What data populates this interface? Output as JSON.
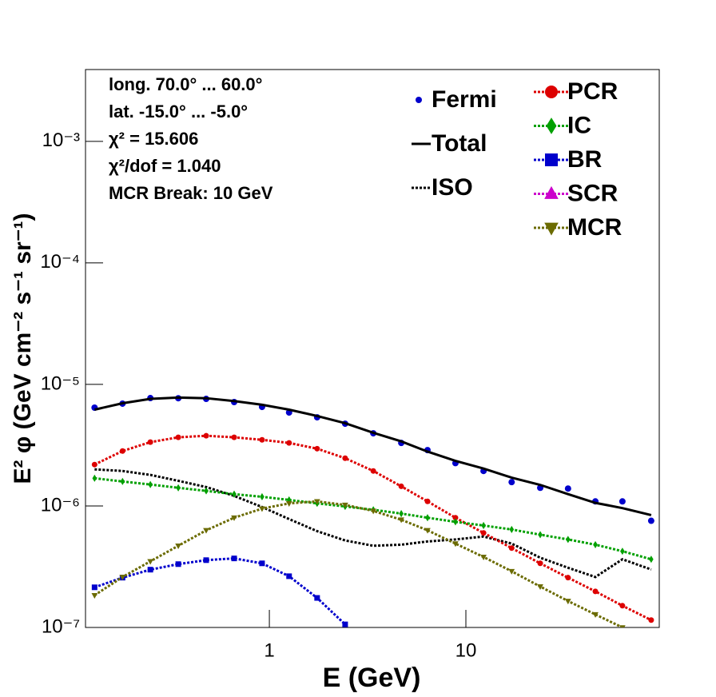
{
  "chart_data": {
    "type": "scatter",
    "log_x": true,
    "log_y": true,
    "x_label": "E (GeV)",
    "y_label": "E² φ (GeV cm⁻² s⁻¹ sr⁻¹)",
    "annotations": [
      "long. 70.0° ... 60.0°",
      "lat. -15.0° ... -5.0°",
      "χ² = 15.606",
      "χ²/dof = 1.040",
      "MCR Break: 10 GeV"
    ],
    "xlim": [
      0.116,
      96.4
    ],
    "ylim": [
      1e-07,
      0.0039
    ],
    "xticks": [
      1,
      10
    ],
    "yticks": [
      {
        "value": 1e-07,
        "label": "10⁻⁷"
      },
      {
        "value": 1e-06,
        "label": "10⁻⁶"
      },
      {
        "value": 1e-05,
        "label": "10⁻⁵"
      },
      {
        "value": 0.0001,
        "label": "10⁻⁴"
      },
      {
        "value": 0.001,
        "label": "10⁻³"
      }
    ],
    "x": [
      0.129,
      0.179,
      0.248,
      0.344,
      0.477,
      0.662,
      0.918,
      1.26,
      1.75,
      2.43,
      3.38,
      4.69,
      6.38,
      8.85,
      12.3,
      17.1,
      23.9,
      33.1,
      45.6,
      62.6,
      87.7
    ],
    "series": [
      {
        "name": "Fermi",
        "color": "#0000cc",
        "marker": "circle",
        "line": "none",
        "values": [
          6.44e-06,
          6.95e-06,
          7.72e-06,
          7.7e-06,
          7.6e-06,
          7.16e-06,
          6.53e-06,
          5.87e-06,
          5.36e-06,
          4.75e-06,
          3.96e-06,
          3.3e-06,
          2.88e-06,
          2.25e-06,
          1.94e-06,
          1.57e-06,
          1.41e-06,
          1.39e-06,
          1.09e-06,
          1.09e-06,
          7.55e-07
        ]
      },
      {
        "name": "Total",
        "color": "#000000",
        "marker": "none",
        "line": "solid",
        "values": [
          6.2e-06,
          7e-06,
          7.6e-06,
          7.8e-06,
          7.7e-06,
          7.3e-06,
          6.8e-06,
          6.2e-06,
          5.5e-06,
          4.8e-06,
          4e-06,
          3.4e-06,
          2.8e-06,
          2.35e-06,
          2.03e-06,
          1.71e-06,
          1.49e-06,
          1.25e-06,
          1.06e-06,
          9.6e-07,
          8.4e-07
        ]
      },
      {
        "name": "ISO",
        "color": "#000000",
        "marker": "none",
        "line": "dotted",
        "values": [
          2e-06,
          1.94e-06,
          1.8e-06,
          1.61e-06,
          1.43e-06,
          1.21e-06,
          9.8e-07,
          7.8e-07,
          6.2e-07,
          5.2e-07,
          4.7e-07,
          4.8e-07,
          5.1e-07,
          5.3e-07,
          5.6e-07,
          4.9e-07,
          3.75e-07,
          3.1e-07,
          2.6e-07,
          3.64e-07,
          3e-07
        ]
      },
      {
        "name": "PCR",
        "color": "#dd0000",
        "marker": "circle",
        "line": "dotted",
        "values": [
          2.19e-06,
          2.83e-06,
          3.35e-06,
          3.67e-06,
          3.78e-06,
          3.67e-06,
          3.5e-06,
          3.3e-06,
          2.96e-06,
          2.47e-06,
          1.94e-06,
          1.45e-06,
          1.09e-06,
          8e-07,
          6e-07,
          4.5e-07,
          3.37e-07,
          2.57e-07,
          1.98e-07,
          1.51e-07,
          1.15e-07
        ]
      },
      {
        "name": "IC",
        "color": "#00a000",
        "marker": "diamond",
        "line": "dotted",
        "values": [
          1.69e-06,
          1.59e-06,
          1.5e-06,
          1.41e-06,
          1.33e-06,
          1.25e-06,
          1.19e-06,
          1.12e-06,
          1.05e-06,
          9.9e-07,
          9.3e-07,
          8.65e-07,
          8e-07,
          7.4e-07,
          6.9e-07,
          6.4e-07,
          5.8e-07,
          5.3e-07,
          4.8e-07,
          4.24e-07,
          3.64e-07
        ]
      },
      {
        "name": "BR",
        "color": "#0000cc",
        "marker": "square",
        "line": "dotted",
        "values": [
          2.14e-07,
          2.57e-07,
          2.99e-07,
          3.32e-07,
          3.58e-07,
          3.7e-07,
          3.37e-07,
          2.64e-07,
          1.75e-07,
          1.06e-07,
          null,
          null,
          null,
          null,
          null,
          null,
          null,
          null,
          null,
          null,
          null
        ]
      },
      {
        "name": "SCR",
        "color": "#cc00cc",
        "marker": "triangle-up",
        "line": "dotted",
        "values": [
          null,
          null,
          null,
          null,
          null,
          null,
          null,
          null,
          null,
          null,
          null,
          null,
          null,
          null,
          null,
          null,
          null,
          null,
          null,
          null,
          null
        ]
      },
      {
        "name": "MCR",
        "color": "#6b6b00",
        "marker": "triangle-down",
        "line": "dotted",
        "values": [
          1.84e-07,
          2.6e-07,
          3.5e-07,
          4.7e-07,
          6.3e-07,
          8e-07,
          9.5e-07,
          1.05e-06,
          1.09e-06,
          1.02e-06,
          9.1e-07,
          7.7e-07,
          6.3e-07,
          4.9e-07,
          3.8e-07,
          2.9e-07,
          2.17e-07,
          1.65e-07,
          1.28e-07,
          1e-07,
          null
        ]
      }
    ]
  }
}
